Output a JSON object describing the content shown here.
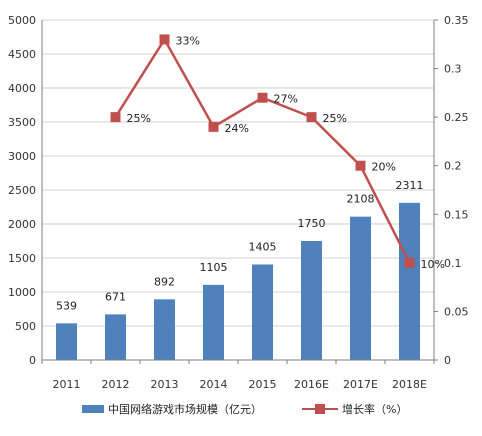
{
  "chart_data": {
    "type": "bar",
    "categories": [
      "2011",
      "2012",
      "2013",
      "2014",
      "2015",
      "2016E",
      "2017E",
      "2018E"
    ],
    "series": [
      {
        "name": "中国网络游戏市场规模（亿元）",
        "type": "bar",
        "axis": "left",
        "color": "#4f81bd",
        "values": [
          539,
          671,
          892,
          1105,
          1405,
          1750,
          2108,
          2311
        ],
        "labels": [
          "539",
          "671",
          "892",
          "1105",
          "1405",
          "1750",
          "2108",
          "2311"
        ]
      },
      {
        "name": "增长率（%）",
        "type": "line",
        "axis": "right",
        "color": "#c0504d",
        "values": [
          null,
          0.25,
          0.33,
          0.24,
          0.27,
          0.25,
          0.2,
          0.1
        ],
        "labels": [
          "",
          "25%",
          "33%",
          "24%",
          "27%",
          "25%",
          "20%",
          "10%"
        ]
      }
    ],
    "y_left": {
      "ylim": [
        0,
        5000
      ],
      "ticks": [
        "0",
        "500",
        "1000",
        "1500",
        "2000",
        "2500",
        "3000",
        "3500",
        "4000",
        "4500",
        "5000"
      ]
    },
    "y_right": {
      "ylim": [
        0,
        0.35
      ],
      "ticks": [
        "0",
        "0.05",
        "0.1",
        "0.15",
        "0.2",
        "0.25",
        "0.3",
        "0.35"
      ]
    },
    "grid": true,
    "legend": "bottom"
  }
}
